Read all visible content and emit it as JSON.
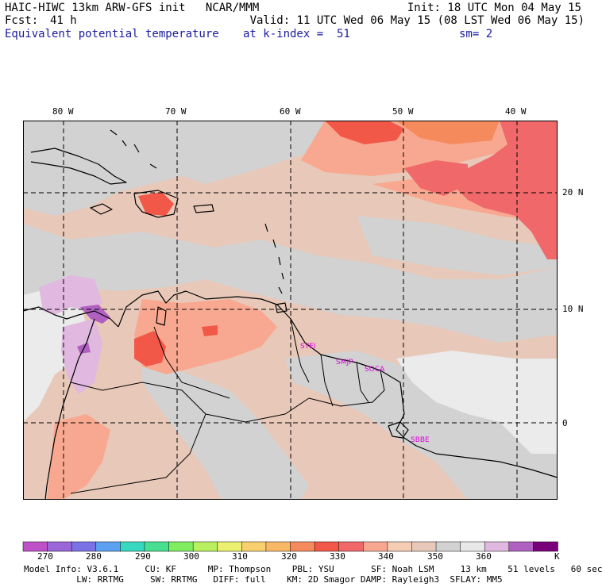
{
  "header": {
    "left_line1": "HAIC-HIWC 13km ARW-GFS init   NCAR/MMM",
    "right_line1": "Init: 18 UTC Mon 04 May 15",
    "fcst_label": "Fcst:",
    "fcst_value": "41 h",
    "valid": "Valid: 11 UTC Wed 06 May 15 (08 LST Wed 06 May 15)",
    "field_name": "Equivalent potential temperature",
    "level": "at k-index =  51",
    "smoothing": "sm= 2"
  },
  "axes": {
    "lon_labels": [
      "80 W",
      "70 W",
      "60 W",
      "50 W",
      "40 W"
    ],
    "lat_labels": [
      "20 N",
      "10 N",
      "0"
    ]
  },
  "stations": [
    "SYEI",
    "SMJP",
    "SOCA",
    "SBBE"
  ],
  "colorbar": {
    "units": "K",
    "labels": [
      "270",
      "280",
      "290",
      "300",
      "310",
      "320",
      "330",
      "340",
      "350",
      "360"
    ],
    "colors": [
      "#c050c8",
      "#9a66d8",
      "#7b72e6",
      "#5ca0f0",
      "#38d8c0",
      "#48e090",
      "#80ec60",
      "#b8f060",
      "#ecf070",
      "#f8d070",
      "#f8b868",
      "#f58a5c",
      "#f25848",
      "#f0686a",
      "#f8a890",
      "#f5ccb4",
      "#e8c8b8",
      "#d2d2d2",
      "#e8e8e8",
      "#e0b8e0",
      "#b060c0",
      "#7a007a"
    ]
  },
  "footer": {
    "line1": "Model Info: V3.6.1     CU: KF      MP: Thompson    PBL: YSU       SF: Noah LSM     13 km    51 levels   60 sec",
    "line2": "          LW: RRTMG     SW: RRTMG   DIFF: full    KM: 2D Smagor DAMP: Rayleigh3  SFLAY: MM5"
  }
}
